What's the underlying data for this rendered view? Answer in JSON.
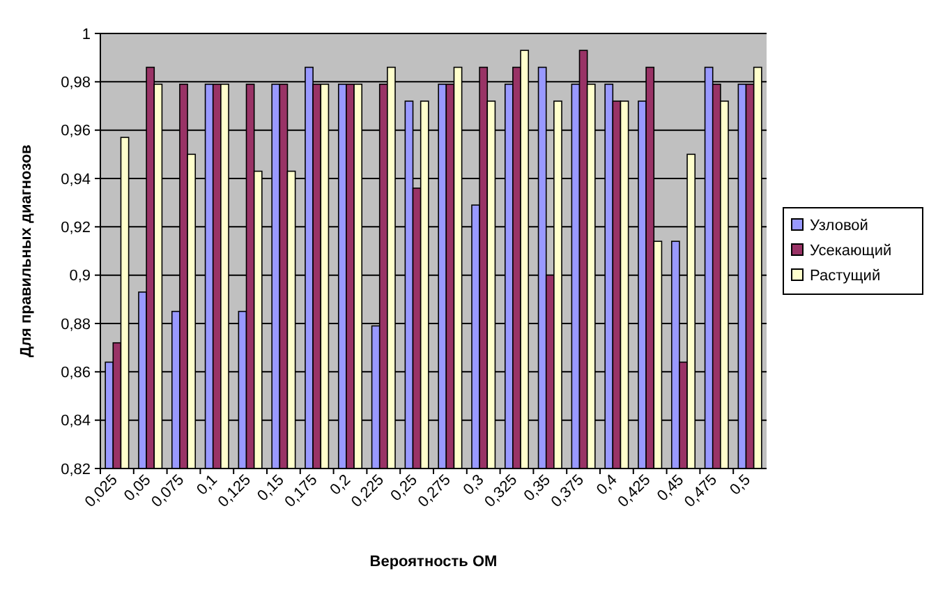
{
  "chart_data": {
    "type": "bar",
    "xlabel": "Вероятность ОМ",
    "ylabel": "Для правильных диагнозов",
    "categories": [
      "0,025",
      "0,05",
      "0,075",
      "0,1",
      "0,125",
      "0,15",
      "0,175",
      "0,2",
      "0,225",
      "0,25",
      "0,275",
      "0,3",
      "0,325",
      "0,35",
      "0,375",
      "0,4",
      "0,425",
      "0,45",
      "0,475",
      "0,5"
    ],
    "series": [
      {
        "name": "Узловой",
        "color": "#9999ff",
        "values": [
          0.864,
          0.893,
          0.885,
          0.979,
          0.885,
          0.979,
          0.986,
          0.979,
          0.879,
          0.972,
          0.979,
          0.929,
          0.979,
          0.986,
          0.979,
          0.979,
          0.972,
          0.914,
          0.986,
          0.979
        ]
      },
      {
        "name": "Усекающий",
        "color": "#993366",
        "values": [
          0.872,
          0.986,
          0.979,
          0.979,
          0.979,
          0.979,
          0.979,
          0.979,
          0.979,
          0.936,
          0.979,
          0.986,
          0.986,
          0.9,
          0.993,
          0.972,
          0.986,
          0.864,
          0.979,
          0.979
        ]
      },
      {
        "name": "Растущий",
        "color": "#ffffcc",
        "values": [
          0.957,
          0.979,
          0.95,
          0.979,
          0.943,
          0.943,
          0.979,
          0.979,
          0.986,
          0.972,
          0.986,
          0.972,
          0.993,
          0.972,
          0.979,
          0.972,
          0.914,
          0.95,
          0.972,
          0.986
        ]
      }
    ],
    "ylim": [
      0.82,
      1
    ],
    "yticks": [
      {
        "value": 0.82,
        "label": "0,82"
      },
      {
        "value": 0.84,
        "label": "0,84"
      },
      {
        "value": 0.86,
        "label": "0,86"
      },
      {
        "value": 0.88,
        "label": "0,88"
      },
      {
        "value": 0.9,
        "label": "0,9"
      },
      {
        "value": 0.92,
        "label": "0,92"
      },
      {
        "value": 0.94,
        "label": "0,94"
      },
      {
        "value": 0.96,
        "label": "0,96"
      },
      {
        "value": 0.98,
        "label": "0,98"
      },
      {
        "value": 1,
        "label": "1"
      }
    ],
    "grid": "y",
    "legend": "right"
  }
}
